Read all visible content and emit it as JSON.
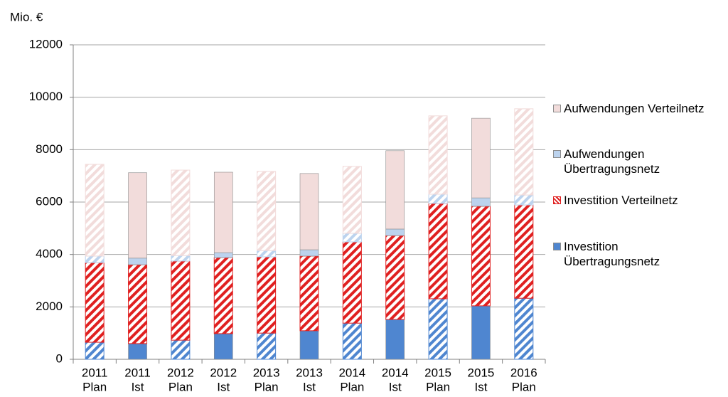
{
  "chart_data": {
    "type": "stacked-bar",
    "y_label": "Mio. €",
    "categories": [
      [
        "2011",
        "Plan"
      ],
      [
        "2011",
        "Ist"
      ],
      [
        "2012",
        "Plan"
      ],
      [
        "2012",
        "Ist"
      ],
      [
        "2013",
        "Plan"
      ],
      [
        "2013",
        "Ist"
      ],
      [
        "2014",
        "Plan"
      ],
      [
        "2014",
        "Ist"
      ],
      [
        "2015",
        "Plan"
      ],
      [
        "2015",
        "Ist"
      ],
      [
        "2016",
        "Plan"
      ]
    ],
    "hatched": [
      true,
      false,
      true,
      false,
      true,
      false,
      true,
      false,
      true,
      false,
      true
    ],
    "series": [
      {
        "name": "Investition Übertragungsnetz",
        "color": "#4f86d0",
        "hatched": false,
        "values": [
          650,
          600,
          730,
          980,
          1000,
          1090,
          1380,
          1520,
          2310,
          2040,
          2330
        ]
      },
      {
        "name": "Investition Verteilnetz",
        "color": "#e02020",
        "hatched": true,
        "values": [
          3040,
          3010,
          3020,
          2900,
          2910,
          2850,
          3100,
          3200,
          3640,
          3800,
          3560
        ]
      },
      {
        "name": "Aufwendungen Übertragungsnetz",
        "color": "#bcd3ee",
        "hatched": false,
        "values": [
          250,
          250,
          210,
          190,
          240,
          240,
          330,
          250,
          350,
          320,
          380
        ]
      },
      {
        "name": "Aufwendungen Verteilnetz",
        "color": "#f2dcdb",
        "hatched": false,
        "values": [
          3500,
          3260,
          3260,
          3070,
          3020,
          2910,
          2550,
          2990,
          2990,
          3040,
          3290
        ]
      }
    ],
    "ylim": [
      0,
      12000
    ],
    "yticks": [
      0,
      2000,
      4000,
      6000,
      8000,
      10000,
      12000
    ],
    "grid": true
  }
}
